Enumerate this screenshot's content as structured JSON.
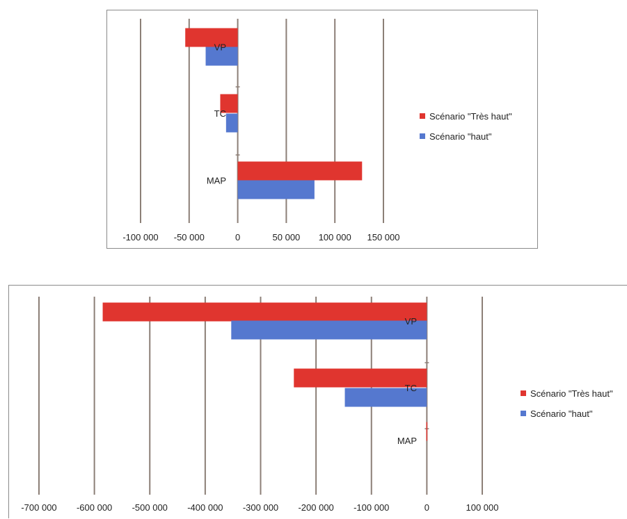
{
  "chart_data": [
    {
      "type": "bar",
      "orientation": "horizontal",
      "categories": [
        "MAP",
        "TC",
        "VP"
      ],
      "series": [
        {
          "name": "Scénario \"Très haut\"",
          "values": [
            128000,
            -18000,
            -54000
          ],
          "color": "#e0352f"
        },
        {
          "name": "Scénario \"haut\"",
          "values": [
            79000,
            -12000,
            -33000
          ],
          "color": "#5578cf"
        }
      ],
      "xlim": [
        -100000,
        150000
      ],
      "x_ticks": [
        -100000,
        -50000,
        0,
        50000,
        100000,
        150000
      ],
      "x_tick_labels": [
        "-100 000",
        "-50 000",
        "0",
        "50 000",
        "100 000",
        "150 000"
      ],
      "grid": "vertical",
      "legend_position": "right"
    },
    {
      "type": "bar",
      "orientation": "horizontal",
      "categories": [
        "MAP",
        "TC",
        "VP"
      ],
      "series": [
        {
          "name": "Scénario \"Très haut\"",
          "values": [
            -1000,
            -240000,
            -585000
          ],
          "color": "#e0352f"
        },
        {
          "name": "Scénario \"haut\"",
          "values": [
            0,
            -148000,
            -353000
          ],
          "color": "#5578cf"
        }
      ],
      "xlim": [
        -700000,
        100000
      ],
      "x_ticks": [
        -700000,
        -600000,
        -500000,
        -400000,
        -300000,
        -200000,
        -100000,
        0,
        100000
      ],
      "x_tick_labels": [
        "-700 000",
        "-600 000",
        "-500 000",
        "-400 000",
        "-300 000",
        "-200 000",
        "-100 000",
        "0",
        "100 000"
      ],
      "grid": "vertical",
      "legend_position": "right"
    }
  ]
}
